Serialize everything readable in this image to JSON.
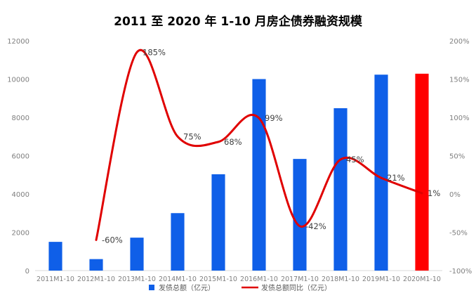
{
  "chart_data": {
    "type": "bar",
    "title": "2011 至 2020 年 1-10 月房企债券融资规模",
    "categories": [
      "2011M1-10",
      "2012M1-10",
      "2013M1-10",
      "2014M1-10",
      "2015M1-10",
      "2016M1-10",
      "2017M1-10",
      "2018M1-10",
      "2019M1-10",
      "2020M1-10"
    ],
    "series": [
      {
        "name": "发债总额（亿元）",
        "kind": "bar",
        "axis": "left",
        "color": "#0f5fe8",
        "highlight_color": "#ff0000",
        "highlight_index": 9,
        "values": [
          1500,
          600,
          1720,
          3000,
          5030,
          10000,
          5830,
          8480,
          10230,
          10280
        ]
      },
      {
        "name": "发债总额同比（亿元）",
        "kind": "line",
        "axis": "right",
        "color": "#e00000",
        "values": [
          null,
          -60,
          185,
          75,
          68,
          99,
          -42,
          45,
          21,
          1
        ],
        "labels": [
          "",
          "-60%",
          "185%",
          "75%",
          "68%",
          "99%",
          "-42%",
          "45%",
          "21%",
          "1%"
        ]
      }
    ],
    "y_left": {
      "min": 0,
      "max": 12000,
      "step": 2000,
      "ticks": [
        "0",
        "2000",
        "4000",
        "6000",
        "8000",
        "10000",
        "12000"
      ]
    },
    "y_right": {
      "min": -100,
      "max": 200,
      "step": 50,
      "ticks": [
        "-100%",
        "-50%",
        "0%",
        "50%",
        "100%",
        "150%",
        "200%"
      ]
    },
    "grid": false,
    "legend": "bottom"
  }
}
